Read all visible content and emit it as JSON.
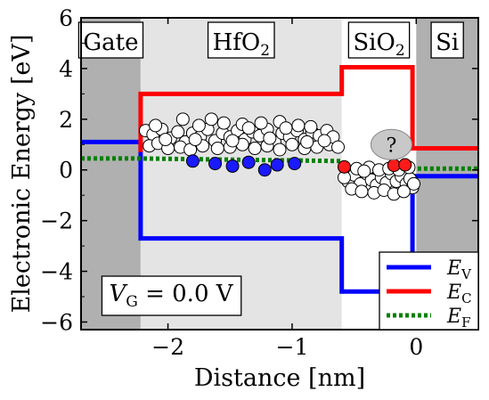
{
  "chart_data": {
    "type": "line",
    "xlabel": "Distance [nm]",
    "ylabel": "Electronic Energy [eV]",
    "xlim": [
      -2.7,
      0.5
    ],
    "ylim": [
      -6.3,
      6
    ],
    "xticks": [
      -2,
      -1,
      0
    ],
    "xtick_labels": [
      "−2",
      "−1",
      "0"
    ],
    "yticks": [
      -6,
      -4,
      -2,
      0,
      2,
      4,
      6
    ],
    "ytick_labels": [
      "−6",
      "−4",
      "−2",
      "0",
      "2",
      "4",
      "6"
    ],
    "regions": [
      {
        "label": "Gate",
        "sub": "",
        "x_start": -2.7,
        "x_end": -2.22,
        "color": "#b0b0b0"
      },
      {
        "label": "HfO",
        "sub": "2",
        "x_start": -2.22,
        "x_end": -0.6,
        "color": "#e4e4e4"
      },
      {
        "label": "SiO",
        "sub": "2",
        "x_start": -0.6,
        "x_end": 0.0,
        "color": "#ffffff"
      },
      {
        "label": "Si",
        "sub": "",
        "x_start": 0.0,
        "x_end": 0.5,
        "color": "#b0b0b0"
      }
    ],
    "series": [
      {
        "symbol": "E",
        "sub": "V",
        "color": "#0000ff",
        "style": "solid",
        "points": [
          [
            -2.7,
            1.1
          ],
          [
            -2.22,
            1.1
          ],
          [
            -2.22,
            -2.7
          ],
          [
            -0.6,
            -2.7
          ],
          [
            -0.6,
            -4.8
          ],
          [
            -0.03,
            -4.8
          ],
          [
            -0.03,
            -0.25
          ],
          [
            0.5,
            -0.25
          ]
        ]
      },
      {
        "symbol": "E",
        "sub": "C",
        "color": "#ff0000",
        "style": "solid",
        "points": [
          [
            -2.22,
            0.7
          ],
          [
            -2.22,
            3.0
          ],
          [
            -0.6,
            3.0
          ],
          [
            -0.6,
            4.05
          ],
          [
            -0.03,
            4.05
          ],
          [
            -0.03,
            0.85
          ],
          [
            0.5,
            0.85
          ]
        ]
      },
      {
        "symbol": "E",
        "sub": "F",
        "color": "#008000",
        "style": "dotted",
        "points": [
          [
            -2.7,
            0.45
          ],
          [
            -2.22,
            0.45
          ],
          [
            -2.22,
            0.45
          ],
          [
            -0.6,
            0.35
          ],
          [
            -0.6,
            0.1
          ],
          [
            0.0,
            0.05
          ],
          [
            0.5,
            0.05
          ]
        ]
      }
    ],
    "legend_placement": "bottom-right",
    "annotations": [
      {
        "type": "text-box",
        "symbol": "V",
        "sub": "G",
        "text": " = 0.0 V"
      },
      {
        "type": "ellipse",
        "text": "?",
        "x": -0.2,
        "y": 1.0
      }
    ],
    "traps": {
      "open": [
        [
          -2.18,
          1.55
        ],
        [
          -2.12,
          1.4
        ],
        [
          -2.05,
          1.6
        ],
        [
          -1.98,
          1.25
        ],
        [
          -1.92,
          1.5
        ],
        [
          -1.86,
          1.1
        ],
        [
          -1.8,
          1.45
        ],
        [
          -1.74,
          1.3
        ],
        [
          -1.68,
          1.6
        ],
        [
          -1.62,
          1.15
        ],
        [
          -1.56,
          1.45
        ],
        [
          -1.5,
          1.3
        ],
        [
          -1.44,
          1.55
        ],
        [
          -1.38,
          1.2
        ],
        [
          -1.32,
          1.5
        ],
        [
          -1.26,
          1.35
        ],
        [
          -1.2,
          1.6
        ],
        [
          -1.14,
          1.1
        ],
        [
          -1.08,
          1.45
        ],
        [
          -1.02,
          1.3
        ],
        [
          -0.96,
          1.55
        ],
        [
          -0.9,
          1.2
        ],
        [
          -0.84,
          1.5
        ],
        [
          -0.78,
          1.35
        ],
        [
          -0.72,
          1.55
        ],
        [
          -2.15,
          0.95
        ],
        [
          -2.08,
          1.05
        ],
        [
          -2.0,
          0.85
        ],
        [
          -1.9,
          0.9
        ],
        [
          -1.82,
          0.8
        ],
        [
          -1.72,
          0.95
        ],
        [
          -1.6,
          0.85
        ],
        [
          -1.5,
          0.9
        ],
        [
          -1.4,
          1.0
        ],
        [
          -1.3,
          0.85
        ],
        [
          -1.2,
          0.95
        ],
        [
          -1.1,
          0.8
        ],
        [
          -1.0,
          1.0
        ],
        [
          -0.9,
          0.85
        ],
        [
          -0.8,
          0.9
        ],
        [
          -0.7,
          1.0
        ],
        [
          -1.88,
          2.0
        ],
        [
          -1.55,
          1.85
        ],
        [
          -1.25,
          1.85
        ],
        [
          -0.95,
          1.75
        ],
        [
          -1.75,
          1.75
        ],
        [
          -1.4,
          1.8
        ],
        [
          -1.1,
          1.9
        ],
        [
          -2.1,
          1.75
        ],
        [
          -0.85,
          1.7
        ],
        [
          -1.65,
          2.0
        ],
        [
          -0.67,
          1.3
        ],
        [
          -2.02,
          1.2
        ],
        [
          -1.35,
          1.65
        ],
        [
          -1.05,
          1.65
        ],
        [
          -1.78,
          1.2
        ],
        [
          -1.48,
          1.15
        ],
        [
          -1.18,
          1.25
        ],
        [
          -0.88,
          1.1
        ],
        [
          -0.74,
          1.15
        ],
        [
          -0.63,
          0.9
        ],
        [
          -0.55,
          -0.45
        ],
        [
          -0.5,
          -0.2
        ],
        [
          -0.45,
          -0.55
        ],
        [
          -0.4,
          -0.15
        ],
        [
          -0.36,
          -0.4
        ],
        [
          -0.32,
          -0.6
        ],
        [
          -0.28,
          -0.3
        ],
        [
          -0.24,
          -0.5
        ],
        [
          -0.2,
          -0.15
        ],
        [
          -0.16,
          -0.45
        ],
        [
          -0.12,
          -0.25
        ],
        [
          -0.08,
          -0.55
        ],
        [
          -0.05,
          -0.35
        ],
        [
          -0.03,
          -0.7
        ],
        [
          -0.52,
          -0.75
        ],
        [
          -0.44,
          -0.85
        ],
        [
          -0.34,
          -0.9
        ],
        [
          -0.26,
          -0.8
        ],
        [
          -0.18,
          -0.95
        ],
        [
          -0.1,
          -0.85
        ],
        [
          -0.48,
          0.05
        ],
        [
          -0.38,
          0.1
        ],
        [
          -0.3,
          0.0
        ],
        [
          -0.22,
          0.05
        ],
        [
          -0.14,
          0.0
        ],
        [
          -0.06,
          0.1
        ],
        [
          -0.42,
          -0.05
        ],
        [
          -0.58,
          -0.3
        ],
        [
          -0.02,
          -0.55
        ]
      ],
      "filled_blue": [
        [
          -1.8,
          0.35
        ],
        [
          -1.62,
          0.25
        ],
        [
          -1.48,
          0.15
        ],
        [
          -1.35,
          0.3
        ],
        [
          -1.12,
          0.2
        ],
        [
          -0.98,
          0.25
        ],
        [
          -1.22,
          0.0
        ]
      ],
      "filled_red": [
        [
          -0.58,
          0.12
        ],
        [
          -0.18,
          0.18
        ],
        [
          -0.09,
          0.2
        ]
      ]
    }
  }
}
